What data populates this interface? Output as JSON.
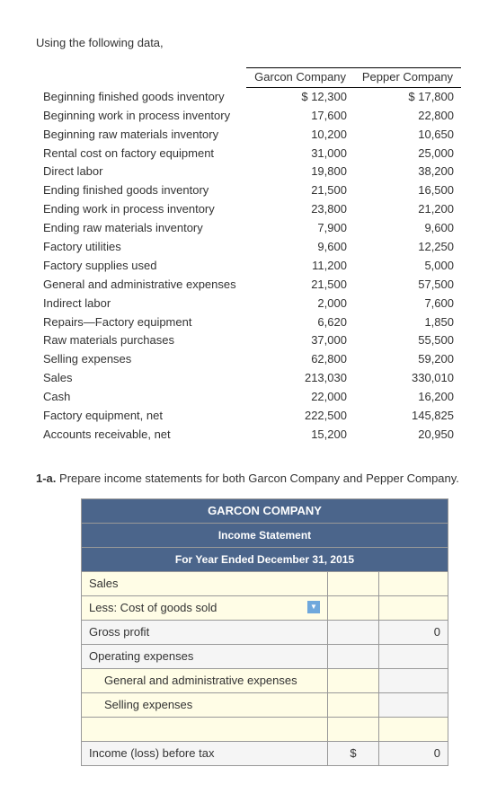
{
  "intro": "Using the following data,",
  "data_headers": [
    "Garcon Company",
    "Pepper Company"
  ],
  "rows": [
    {
      "label": "Beginning finished goods inventory",
      "g": "$ 12,300",
      "p": "$ 17,800"
    },
    {
      "label": "Beginning work in process inventory",
      "g": "17,600",
      "p": "22,800"
    },
    {
      "label": "Beginning raw materials inventory",
      "g": "10,200",
      "p": "10,650"
    },
    {
      "label": "Rental cost on factory equipment",
      "g": "31,000",
      "p": "25,000"
    },
    {
      "label": "Direct labor",
      "g": "19,800",
      "p": "38,200"
    },
    {
      "label": "Ending finished goods inventory",
      "g": "21,500",
      "p": "16,500"
    },
    {
      "label": "Ending work in process inventory",
      "g": "23,800",
      "p": "21,200"
    },
    {
      "label": "Ending raw materials inventory",
      "g": "7,900",
      "p": "9,600"
    },
    {
      "label": "Factory utilities",
      "g": "9,600",
      "p": "12,250"
    },
    {
      "label": "Factory supplies used",
      "g": "11,200",
      "p": "5,000"
    },
    {
      "label": "General and administrative expenses",
      "g": "21,500",
      "p": "57,500"
    },
    {
      "label": "Indirect labor",
      "g": "2,000",
      "p": "7,600"
    },
    {
      "label": "Repairs—Factory equipment",
      "g": "6,620",
      "p": "1,850"
    },
    {
      "label": "Raw materials purchases",
      "g": "37,000",
      "p": "55,500"
    },
    {
      "label": "Selling expenses",
      "g": "62,800",
      "p": "59,200"
    },
    {
      "label": "Sales",
      "g": "213,030",
      "p": "330,010"
    },
    {
      "label": "Cash",
      "g": "22,000",
      "p": "16,200"
    },
    {
      "label": "Factory equipment, net",
      "g": "222,500",
      "p": "145,825"
    },
    {
      "label": "Accounts receivable, net",
      "g": "15,200",
      "p": "20,950"
    }
  ],
  "question_prefix": "1-a.",
  "question": "Prepare income statements for both Garcon Company and Pepper Company.",
  "income": {
    "title": "GARCON COMPANY",
    "sub1": "Income Statement",
    "sub2": "For Year Ended December 31, 2015",
    "lines": {
      "sales": "Sales",
      "cogs": "Less: Cost of goods sold",
      "gross": "Gross profit",
      "gross_val": "0",
      "opex": "Operating expenses",
      "ga": "General and administrative expenses",
      "selling": "Selling expenses",
      "income": "Income (loss) before tax",
      "dollar": "$",
      "inc_val": "0"
    }
  }
}
